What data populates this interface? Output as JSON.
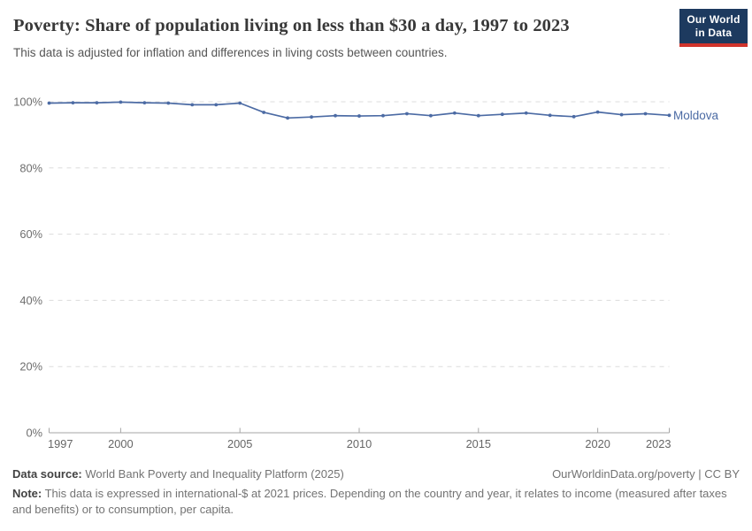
{
  "header": {
    "title": "Poverty: Share of population living on less than $30 a day, 1997 to 2023",
    "subtitle": "This data is adjusted for inflation and differences in living costs between countries.",
    "logo": {
      "line1": "Our World",
      "line2": "in Data"
    }
  },
  "chart_data": {
    "type": "line",
    "title": "Poverty: Share of population living on less than $30 a day, 1997 to 2023",
    "x": [
      1997,
      1998,
      1999,
      2000,
      2001,
      2002,
      2003,
      2004,
      2005,
      2006,
      2007,
      2008,
      2009,
      2010,
      2011,
      2012,
      2013,
      2014,
      2015,
      2016,
      2017,
      2018,
      2019,
      2020,
      2021,
      2022,
      2023
    ],
    "series": [
      {
        "name": "Moldova",
        "color": "#4c6ba4",
        "values": [
          99.6,
          99.7,
          99.7,
          99.9,
          99.7,
          99.6,
          99.1,
          99.1,
          99.6,
          96.8,
          95.1,
          95.4,
          95.8,
          95.7,
          95.8,
          96.4,
          95.8,
          96.6,
          95.8,
          96.2,
          96.6,
          95.9,
          95.5,
          96.9,
          96.1,
          96.4,
          95.9
        ]
      }
    ],
    "xlabel": "",
    "ylabel": "",
    "xlim": [
      1997,
      2023
    ],
    "ylim": [
      0,
      100
    ],
    "grid": "horizontal-dashed",
    "legend": "line-end-label",
    "xticks": [
      {
        "v": 1997,
        "label": "1997"
      },
      {
        "v": 2000,
        "label": "2000"
      },
      {
        "v": 2005,
        "label": "2005"
      },
      {
        "v": 2010,
        "label": "2010"
      },
      {
        "v": 2015,
        "label": "2015"
      },
      {
        "v": 2020,
        "label": "2020"
      },
      {
        "v": 2023,
        "label": "2023"
      }
    ],
    "yticks": [
      {
        "v": 0,
        "label": "0%"
      },
      {
        "v": 20,
        "label": "20%"
      },
      {
        "v": 40,
        "label": "40%"
      },
      {
        "v": 60,
        "label": "60%"
      },
      {
        "v": 80,
        "label": "80%"
      },
      {
        "v": 100,
        "label": "100%"
      }
    ]
  },
  "footer": {
    "source_label": "Data source:",
    "source_text": " World Bank Poverty and Inequality Platform (2025)",
    "attribution": "OurWorldinData.org/poverty | CC BY",
    "note_label": "Note:",
    "note_text": " This data is expressed in international-$ at 2021 prices. Depending on the country and year, it relates to income (measured after taxes and benefits) or to consumption, per capita."
  },
  "colors": {
    "line": "#4c6ba4",
    "grid": "#dcdcdc",
    "axis": "#a6a6a6",
    "tick_label": "#6e6e6e",
    "logo_bg": "#1d3a5f",
    "logo_red": "#d0342c",
    "title": "#383838",
    "subtitle": "#555555",
    "footer": "#737373"
  }
}
